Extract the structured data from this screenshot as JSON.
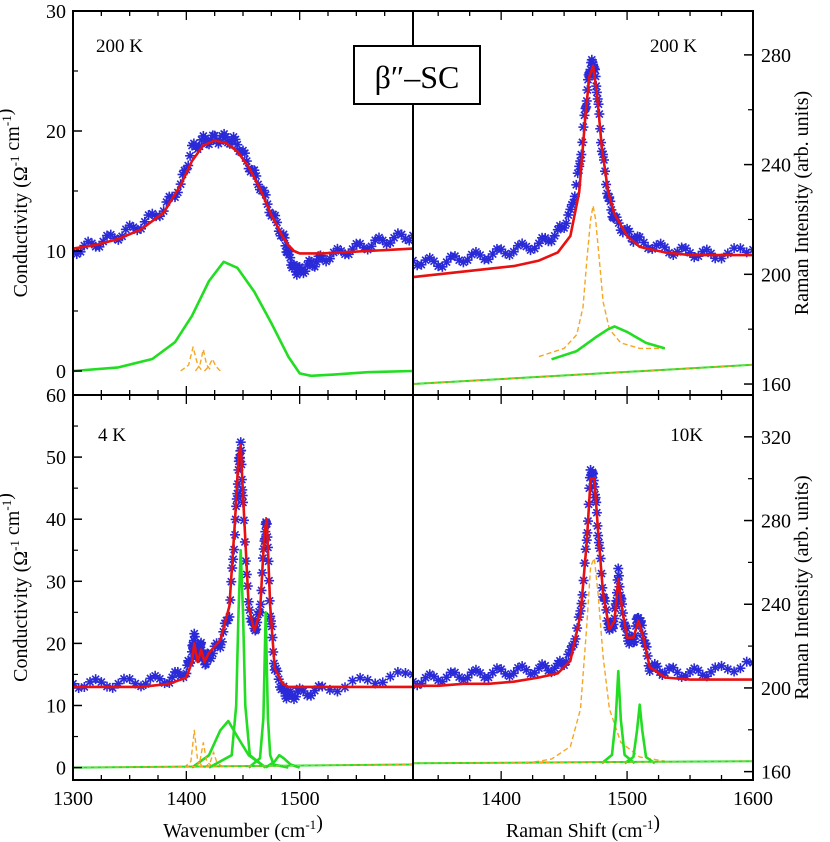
{
  "figure": {
    "title": "β″–SC",
    "colors": {
      "data": "#2a2ad8",
      "fit": "#e81010",
      "component": "#22dd22",
      "dashed": "#f5a623",
      "axis": "#000000"
    }
  },
  "chart_data": [
    {
      "id": "ir-200k",
      "type": "scatter+line",
      "panel_label": "200 K",
      "xlabel": "",
      "ylabel": "Conductivity (Ω⁻¹ cm⁻¹)",
      "xlim": [
        1300,
        1600
      ],
      "ylim": [
        -2,
        30
      ],
      "yticks": [
        0,
        10,
        20,
        30
      ],
      "xticks": [],
      "series": [
        {
          "name": "data",
          "style": "markers",
          "x": [
            1300,
            1320,
            1340,
            1360,
            1380,
            1395,
            1405,
            1415,
            1425,
            1435,
            1445,
            1455,
            1465,
            1475,
            1485,
            1490,
            1495,
            1500,
            1510,
            1520,
            1540,
            1560,
            1580,
            1600
          ],
          "y": [
            10.0,
            10.6,
            11.3,
            12.2,
            13.5,
            15.5,
            18.5,
            19.2,
            19.3,
            19.4,
            19.0,
            17.2,
            15.5,
            13.2,
            11.3,
            9.8,
            8.5,
            8.3,
            8.9,
            9.4,
            10.0,
            10.5,
            11.0,
            11.3
          ]
        },
        {
          "name": "fit",
          "style": "line",
          "x": [
            1300,
            1320,
            1340,
            1360,
            1380,
            1395,
            1405,
            1415,
            1425,
            1435,
            1445,
            1455,
            1465,
            1475,
            1485,
            1490,
            1495,
            1500,
            1510,
            1520,
            1540,
            1560,
            1580,
            1600
          ],
          "y": [
            10.2,
            10.5,
            11.0,
            11.8,
            13.2,
            15.5,
            17.5,
            18.8,
            19.2,
            19.0,
            18.3,
            17.0,
            15.2,
            13.0,
            11.2,
            10.5,
            10.0,
            9.8,
            9.8,
            9.8,
            9.9,
            10.0,
            10.1,
            10.2
          ]
        },
        {
          "name": "component",
          "style": "line",
          "x": [
            1300,
            1340,
            1370,
            1390,
            1405,
            1420,
            1433,
            1445,
            1460,
            1475,
            1490,
            1500,
            1510,
            1530,
            1560,
            1600
          ],
          "y": [
            0.0,
            0.3,
            1.0,
            2.4,
            4.6,
            7.5,
            9.1,
            8.6,
            6.6,
            4.0,
            1.2,
            -0.2,
            -0.4,
            -0.3,
            -0.1,
            0.0
          ]
        },
        {
          "name": "component-dashed-1",
          "style": "dashed",
          "x": [
            1395,
            1402,
            1406,
            1410,
            1414
          ],
          "y": [
            0.0,
            0.5,
            2.0,
            0.5,
            0.0
          ]
        },
        {
          "name": "component-dashed-2",
          "style": "dashed",
          "x": [
            1408,
            1412,
            1415,
            1418,
            1422
          ],
          "y": [
            0.0,
            0.5,
            1.8,
            0.5,
            0.0
          ]
        },
        {
          "name": "component-dashed-3",
          "style": "dashed",
          "x": [
            1416,
            1420,
            1423,
            1426,
            1430
          ],
          "y": [
            0.0,
            0.4,
            1.0,
            0.4,
            0.0
          ]
        }
      ]
    },
    {
      "id": "raman-200k",
      "type": "scatter+line",
      "panel_label": "200 K",
      "xlabel": "",
      "ylabel": "Raman Intensity (arb. units)",
      "xlim": [
        1330,
        1600
      ],
      "ylim": [
        156,
        296
      ],
      "yticks": [
        160,
        200,
        240,
        280
      ],
      "xticks": [],
      "series": [
        {
          "name": "data",
          "style": "markers",
          "x": [
            1330,
            1350,
            1370,
            1390,
            1410,
            1430,
            1445,
            1455,
            1462,
            1467,
            1470,
            1473,
            1476,
            1480,
            1485,
            1490,
            1500,
            1510,
            1530,
            1550,
            1570,
            1600
          ],
          "y": [
            205,
            204,
            206,
            207,
            209,
            211,
            215,
            222,
            238,
            260,
            274,
            278,
            268,
            246,
            228,
            220,
            215,
            212,
            209,
            208,
            207,
            209
          ]
        },
        {
          "name": "fit",
          "style": "line",
          "x": [
            1330,
            1350,
            1370,
            1390,
            1410,
            1430,
            1445,
            1455,
            1462,
            1467,
            1470,
            1473,
            1476,
            1480,
            1485,
            1490,
            1500,
            1510,
            1530,
            1550,
            1570,
            1600
          ],
          "y": [
            199,
            200,
            201,
            202,
            203,
            205,
            208,
            214,
            230,
            258,
            272,
            276,
            266,
            246,
            230,
            222,
            214,
            210,
            208,
            207,
            207,
            207
          ]
        },
        {
          "name": "component-dashed",
          "style": "dashed",
          "x": [
            1430,
            1450,
            1460,
            1465,
            1468,
            1471,
            1473,
            1475,
            1478,
            1481,
            1486,
            1495,
            1510,
            1530
          ],
          "y": [
            170,
            173,
            178,
            188,
            205,
            220,
            225,
            220,
            205,
            190,
            180,
            175,
            173,
            173
          ]
        },
        {
          "name": "component",
          "style": "line",
          "x": [
            1440,
            1460,
            1475,
            1485,
            1490,
            1500,
            1515,
            1530
          ],
          "y": [
            169,
            172,
            177,
            180,
            181,
            179,
            175,
            173
          ]
        },
        {
          "name": "baseline",
          "style": "line",
          "x": [
            1330,
            1600
          ],
          "y": [
            160,
            167
          ]
        }
      ]
    },
    {
      "id": "ir-4k",
      "type": "scatter+line",
      "panel_label": "4 K",
      "xlabel": "Wavenumber (cm⁻¹)",
      "ylabel": "Conductivity (Ω⁻¹ cm⁻¹)",
      "xlim": [
        1300,
        1600
      ],
      "ylim": [
        -2,
        60
      ],
      "yticks": [
        0,
        10,
        20,
        30,
        40,
        50,
        60
      ],
      "xticks": [
        1300,
        1400,
        1500
      ],
      "series": [
        {
          "name": "data",
          "style": "markers",
          "x": [
            1300,
            1330,
            1360,
            1385,
            1400,
            1405,
            1407,
            1410,
            1413,
            1416,
            1420,
            1430,
            1438,
            1443,
            1446,
            1448,
            1450,
            1455,
            1460,
            1465,
            1469,
            1471,
            1474,
            1478,
            1485,
            1490,
            1500,
            1520,
            1560,
            1600
          ],
          "y": [
            13.5,
            13.5,
            13.8,
            14.3,
            15.5,
            18.5,
            21.0,
            17.5,
            19.5,
            17.0,
            18.0,
            20.0,
            25.0,
            38.0,
            48.0,
            52.0,
            42.0,
            26.0,
            22.0,
            25.0,
            37.0,
            40.0,
            25.0,
            16.0,
            12.5,
            11.5,
            12.0,
            12.5,
            14.0,
            15.0
          ]
        },
        {
          "name": "fit",
          "style": "line",
          "x": [
            1300,
            1330,
            1360,
            1385,
            1400,
            1405,
            1407,
            1410,
            1413,
            1416,
            1420,
            1430,
            1438,
            1443,
            1446,
            1448,
            1450,
            1455,
            1460,
            1465,
            1469,
            1471,
            1474,
            1478,
            1485,
            1490,
            1500,
            1520,
            1560,
            1600
          ],
          "y": [
            13.0,
            13.0,
            13.0,
            13.5,
            14.5,
            17.0,
            20.0,
            17.0,
            19.0,
            17.0,
            18.5,
            20.5,
            26.0,
            40.0,
            50.0,
            52.0,
            44.0,
            26.0,
            22.0,
            25.0,
            38.0,
            40.0,
            26.0,
            16.0,
            13.5,
            13.0,
            13.0,
            13.0,
            13.0,
            13.0
          ]
        },
        {
          "name": "component-main",
          "style": "line",
          "x": [
            1420,
            1440,
            1444,
            1446,
            1448,
            1450,
            1452,
            1456,
            1470
          ],
          "y": [
            0,
            2,
            10,
            25,
            35,
            25,
            10,
            2,
            0
          ]
        },
        {
          "name": "component-2",
          "style": "line",
          "x": [
            1455,
            1465,
            1468,
            1470,
            1472,
            1474,
            1477,
            1490
          ],
          "y": [
            0,
            1.5,
            8,
            25,
            8,
            2,
            0.5,
            0
          ]
        },
        {
          "name": "component-3",
          "style": "line",
          "x": [
            1405,
            1420,
            1430,
            1437,
            1445,
            1455,
            1470
          ],
          "y": [
            0,
            2,
            6,
            7.5,
            5,
            2,
            0
          ]
        },
        {
          "name": "component-4",
          "style": "line",
          "x": [
            1470,
            1478,
            1482,
            1486,
            1492,
            1500
          ],
          "y": [
            0,
            1,
            2,
            1.5,
            0.5,
            0
          ]
        },
        {
          "name": "component-dashed-1",
          "style": "dashed",
          "x": [
            1398,
            1404,
            1407,
            1410,
            1416
          ],
          "y": [
            0,
            1,
            6,
            1,
            0
          ]
        },
        {
          "name": "component-dashed-2",
          "style": "dashed",
          "x": [
            1408,
            1412,
            1415,
            1418,
            1424
          ],
          "y": [
            0,
            1,
            4,
            1,
            0
          ]
        },
        {
          "name": "component-dashed-3",
          "style": "dashed",
          "x": [
            1416,
            1421,
            1424,
            1427,
            1433
          ],
          "y": [
            0,
            0.8,
            2.5,
            0.8,
            0
          ]
        },
        {
          "name": "baseline",
          "style": "line",
          "x": [
            1300,
            1600
          ],
          "y": [
            0,
            0.5
          ]
        }
      ]
    },
    {
      "id": "raman-10k",
      "type": "scatter+line",
      "panel_label": "10K",
      "xlabel": "Raman Shift (cm⁻¹)",
      "ylabel": "Raman Intensity (arb. units)",
      "xlim": [
        1330,
        1600
      ],
      "ylim": [
        156,
        340
      ],
      "yticks": [
        160,
        200,
        240,
        280,
        320
      ],
      "xticks": [
        1400,
        1500,
        1600
      ],
      "series": [
        {
          "name": "data",
          "style": "markers",
          "x": [
            1330,
            1350,
            1370,
            1390,
            1410,
            1430,
            1445,
            1455,
            1463,
            1468,
            1471,
            1474,
            1477,
            1481,
            1486,
            1490,
            1493,
            1496,
            1500,
            1505,
            1509,
            1513,
            1518,
            1530,
            1550,
            1570,
            1600
          ],
          "y": [
            203,
            205,
            206,
            207,
            208,
            209,
            210,
            216,
            235,
            270,
            305,
            298,
            275,
            245,
            228,
            232,
            255,
            238,
            224,
            222,
            235,
            225,
            210,
            208,
            207,
            208,
            212
          ]
        },
        {
          "name": "fit",
          "style": "line",
          "x": [
            1330,
            1350,
            1370,
            1390,
            1410,
            1430,
            1445,
            1455,
            1463,
            1468,
            1471,
            1474,
            1477,
            1481,
            1486,
            1490,
            1493,
            1496,
            1500,
            1505,
            1509,
            1513,
            1518,
            1530,
            1550,
            1570,
            1600
          ],
          "y": [
            201,
            201,
            202,
            202,
            203,
            205,
            207,
            213,
            235,
            270,
            300,
            300,
            275,
            245,
            228,
            232,
            252,
            238,
            224,
            224,
            232,
            224,
            210,
            205,
            204,
            204,
            204
          ]
        },
        {
          "name": "component-dashed",
          "style": "dashed",
          "x": [
            1420,
            1440,
            1455,
            1463,
            1468,
            1471,
            1474,
            1477,
            1481,
            1486,
            1495,
            1510,
            1530
          ],
          "y": [
            164,
            166,
            172,
            190,
            230,
            258,
            262,
            245,
            215,
            190,
            174,
            167,
            165
          ]
        },
        {
          "name": "component-2",
          "style": "line",
          "x": [
            1480,
            1488,
            1491,
            1493,
            1495,
            1498,
            1506
          ],
          "y": [
            164,
            168,
            185,
            208,
            185,
            168,
            164
          ]
        },
        {
          "name": "component-3",
          "style": "line",
          "x": [
            1498,
            1505,
            1508,
            1510,
            1512,
            1515,
            1522
          ],
          "y": [
            164,
            167,
            180,
            192,
            180,
            167,
            164
          ]
        },
        {
          "name": "baseline",
          "style": "line",
          "x": [
            1330,
            1600
          ],
          "y": [
            164,
            165
          ]
        }
      ]
    }
  ]
}
